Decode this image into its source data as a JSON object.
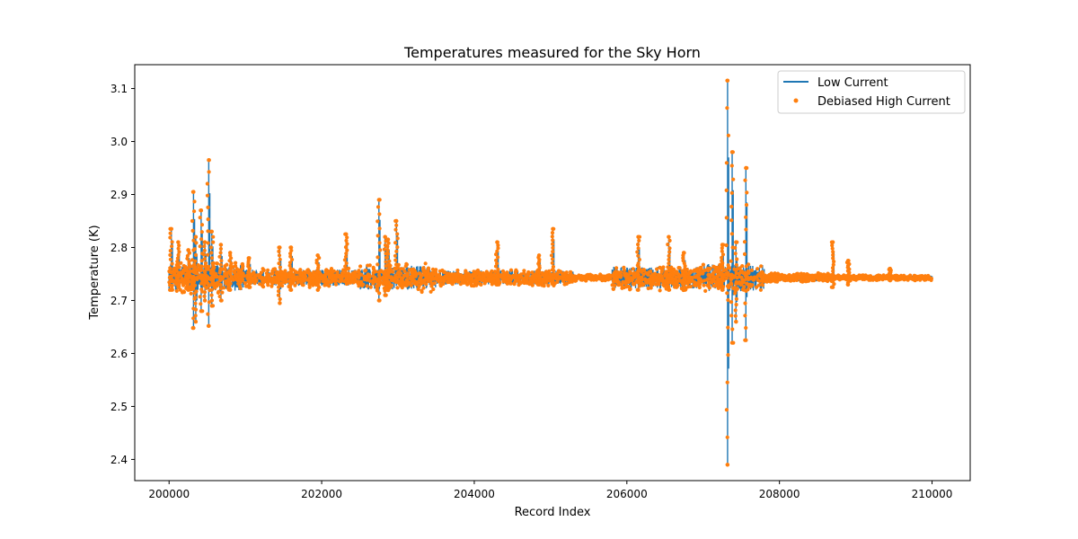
{
  "chart_data": {
    "type": "line",
    "title": "Temperatures measured for the Sky Horn",
    "xlabel": "Record Index",
    "ylabel": "Temperature (K)",
    "xlim": [
      199550,
      210500
    ],
    "ylim": [
      2.36,
      3.145
    ],
    "x_ticks": [
      200000,
      202000,
      204000,
      206000,
      208000,
      210000
    ],
    "y_ticks": [
      2.4,
      2.5,
      2.6,
      2.7,
      2.8,
      2.9,
      3.0,
      3.1
    ],
    "grid": false,
    "legend": {
      "placement": "top-right",
      "entries": [
        "Low Current",
        "Debiased High Current"
      ]
    },
    "baseline": 2.743,
    "series": [
      {
        "name": "Low Current",
        "style": "line",
        "color": "#1f77b4"
      },
      {
        "name": "Debiased High Current",
        "style": "scatter",
        "color": "#ff7f0e"
      }
    ],
    "noise_bands": [
      {
        "x": [
          200000,
          201000
        ],
        "low": 2.718,
        "high": 2.775
      },
      {
        "x": [
          201000,
          202500
        ],
        "low": 2.728,
        "high": 2.762
      },
      {
        "x": [
          202500,
          203500
        ],
        "low": 2.722,
        "high": 2.772
      },
      {
        "x": [
          203500,
          205300
        ],
        "low": 2.73,
        "high": 2.76
      },
      {
        "x": [
          205300,
          205800
        ],
        "low": 2.738,
        "high": 2.75
      },
      {
        "x": [
          205800,
          207000
        ],
        "low": 2.722,
        "high": 2.768
      },
      {
        "x": [
          207000,
          207800
        ],
        "low": 2.718,
        "high": 2.775
      },
      {
        "x": [
          207800,
          208700
        ],
        "low": 2.736,
        "high": 2.752
      },
      {
        "x": [
          208700,
          210000
        ],
        "low": 2.739,
        "high": 2.749
      }
    ],
    "spikes": [
      {
        "x": 200030,
        "high": 2.835,
        "low": 2.72
      },
      {
        "x": 200120,
        "high": 2.81,
        "low": 2.725
      },
      {
        "x": 200250,
        "high": 2.795,
        "low": 2.72
      },
      {
        "x": 200320,
        "high": 2.905,
        "low": 2.648
      },
      {
        "x": 200350,
        "high": 2.82,
        "low": 2.66
      },
      {
        "x": 200420,
        "high": 2.87,
        "low": 2.68
      },
      {
        "x": 200470,
        "high": 2.81,
        "low": 2.7
      },
      {
        "x": 200520,
        "high": 2.965,
        "low": 2.652
      },
      {
        "x": 200560,
        "high": 2.83,
        "low": 2.69
      },
      {
        "x": 200680,
        "high": 2.805,
        "low": 2.7
      },
      {
        "x": 200800,
        "high": 2.79,
        "low": 2.72
      },
      {
        "x": 201050,
        "high": 2.78,
        "low": 2.725
      },
      {
        "x": 201450,
        "high": 2.8,
        "low": 2.695
      },
      {
        "x": 201600,
        "high": 2.8,
        "low": 2.72
      },
      {
        "x": 201950,
        "high": 2.785,
        "low": 2.72
      },
      {
        "x": 202320,
        "high": 2.825,
        "low": 2.74
      },
      {
        "x": 202750,
        "high": 2.89,
        "low": 2.7
      },
      {
        "x": 202830,
        "high": 2.82,
        "low": 2.71
      },
      {
        "x": 202870,
        "high": 2.815,
        "low": 2.72
      },
      {
        "x": 202980,
        "high": 2.85,
        "low": 2.735
      },
      {
        "x": 204300,
        "high": 2.81,
        "low": 2.73
      },
      {
        "x": 204850,
        "high": 2.785,
        "low": 2.73
      },
      {
        "x": 205030,
        "high": 2.835,
        "low": 2.735
      },
      {
        "x": 206150,
        "high": 2.82,
        "low": 2.72
      },
      {
        "x": 206550,
        "high": 2.82,
        "low": 2.72
      },
      {
        "x": 206750,
        "high": 2.79,
        "low": 2.72
      },
      {
        "x": 207250,
        "high": 2.805,
        "low": 2.72
      },
      {
        "x": 207320,
        "high": 3.115,
        "low": 2.39
      },
      {
        "x": 207380,
        "high": 2.98,
        "low": 2.62
      },
      {
        "x": 207430,
        "high": 2.81,
        "low": 2.66
      },
      {
        "x": 207560,
        "high": 2.95,
        "low": 2.625
      },
      {
        "x": 208700,
        "high": 2.81,
        "low": 2.725
      },
      {
        "x": 208900,
        "high": 2.775,
        "low": 2.73
      },
      {
        "x": 209450,
        "high": 2.76,
        "low": 2.738
      }
    ]
  }
}
